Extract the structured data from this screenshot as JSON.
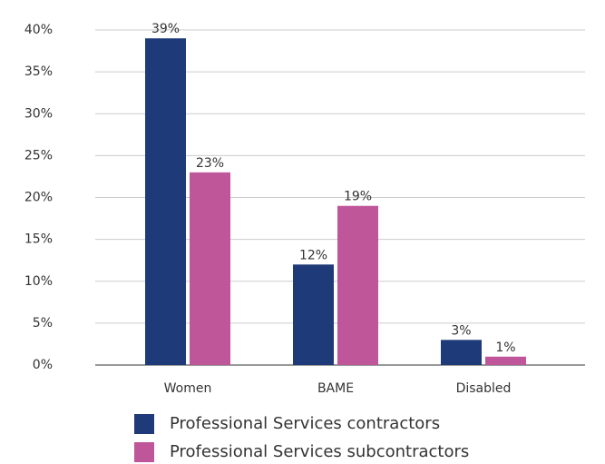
{
  "chart_data": {
    "type": "bar",
    "categories": [
      "Women",
      "BAME",
      "Disabled"
    ],
    "series": [
      {
        "name": "Professional Services contractors",
        "color": "#1f3a78",
        "values": [
          39,
          12,
          3
        ],
        "value_labels": [
          "39%",
          "12%",
          "3%"
        ]
      },
      {
        "name": "Professional Services subcontractors",
        "color": "#c0569a",
        "values": [
          23,
          19,
          1
        ],
        "value_labels": [
          "23%",
          "19%",
          "1%"
        ]
      }
    ],
    "ylim": [
      0,
      40
    ],
    "yticks": [
      {
        "value": 0,
        "label": "0%"
      },
      {
        "value": 5,
        "label": "5%"
      },
      {
        "value": 10,
        "label": "10%"
      },
      {
        "value": 15,
        "label": "15%"
      },
      {
        "value": 20,
        "label": "20%"
      },
      {
        "value": 25,
        "label": "25%"
      },
      {
        "value": 30,
        "label": "30%"
      },
      {
        "value": 35,
        "label": "35%"
      },
      {
        "value": 40,
        "label": "40%"
      }
    ],
    "grid": true,
    "legend": "bottom"
  }
}
